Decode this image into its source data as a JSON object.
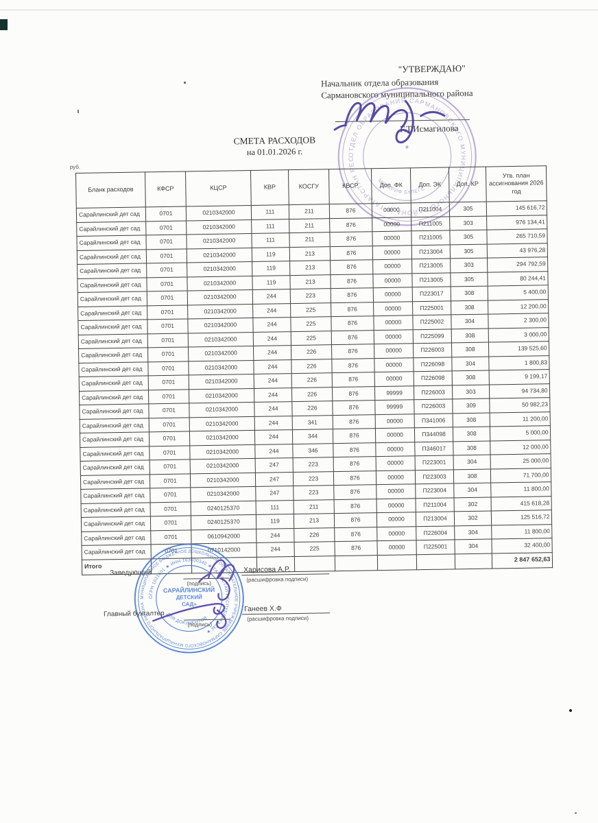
{
  "page": {
    "approval": {
      "approve_word": "\"УТВЕРЖДАЮ\"",
      "approver_title_line1": "Начальник отдела образования",
      "approver_title_line2": "Сармановского муниципального района",
      "approver_name": "Г.Т.Исмагилова"
    },
    "title": "СМЕТА РАСХОДОВ",
    "subtitle": "на 01.01.2026 г.",
    "unit_note": "руб."
  },
  "table": {
    "headers": [
      "Бланк расходов",
      "КФСР",
      "КЦСР",
      "КВР",
      "КОСГУ",
      "КВСР",
      "Доп. ФК",
      "Доп. ЭК",
      "Доп. КР",
      "Утв. план ассигнования 2026 год"
    ],
    "rows": [
      [
        "Сарайлинский дет сад",
        "0701",
        "0210342000",
        "111",
        "211",
        "876",
        "00000",
        "П211004",
        "305",
        "145 616,72"
      ],
      [
        "Сарайлинский дет сад",
        "0701",
        "0210342000",
        "111",
        "211",
        "876",
        "00000",
        "П211005",
        "303",
        "976 134,41"
      ],
      [
        "Сарайлинский дет сад",
        "0701",
        "0210342000",
        "111",
        "211",
        "876",
        "00000",
        "П211005",
        "305",
        "265 710,59"
      ],
      [
        "Сарайлинский дет сад",
        "0701",
        "0210342000",
        "119",
        "213",
        "876",
        "00000",
        "П213004",
        "305",
        "43 976,28"
      ],
      [
        "Сарайлинский дет сад",
        "0701",
        "0210342000",
        "119",
        "213",
        "876",
        "00000",
        "П213005",
        "303",
        "294 792,59"
      ],
      [
        "Сарайлинский дет сад",
        "0701",
        "0210342000",
        "119",
        "213",
        "876",
        "00000",
        "П213005",
        "305",
        "80 244,41"
      ],
      [
        "Сарайлинский дет сад",
        "0701",
        "0210342000",
        "244",
        "223",
        "876",
        "00000",
        "П223017",
        "308",
        "5 400,00"
      ],
      [
        "Сарайлинский дет сад",
        "0701",
        "0210342000",
        "244",
        "225",
        "876",
        "00000",
        "П225001",
        "308",
        "12 200,00"
      ],
      [
        "Сарайлинский дет сад",
        "0701",
        "0210342000",
        "244",
        "225",
        "876",
        "00000",
        "П225002",
        "304",
        "2 300,00"
      ],
      [
        "Сарайлинский дет сад",
        "0701",
        "0210342000",
        "244",
        "225",
        "876",
        "00000",
        "П225099",
        "308",
        "3 000,00"
      ],
      [
        "Сарайлинский дет сад",
        "0701",
        "0210342000",
        "244",
        "226",
        "876",
        "00000",
        "П226003",
        "308",
        "139 525,60"
      ],
      [
        "Сарайлинский дет сад",
        "0701",
        "0210342000",
        "244",
        "226",
        "876",
        "00000",
        "П226098",
        "304",
        "1 800,83"
      ],
      [
        "Сарайлинский дет сад",
        "0701",
        "0210342000",
        "244",
        "226",
        "876",
        "00000",
        "П226098",
        "308",
        "9 199,17"
      ],
      [
        "Сарайлинский дет сад",
        "0701",
        "0210342000",
        "244",
        "226",
        "876",
        "99999",
        "П226003",
        "303",
        "94 734,80"
      ],
      [
        "Сарайлинский дет сад",
        "0701",
        "0210342000",
        "244",
        "226",
        "876",
        "99999",
        "П226003",
        "309",
        "50 982,23"
      ],
      [
        "Сарайлинский дет сад",
        "0701",
        "0210342000",
        "244",
        "341",
        "876",
        "00000",
        "П341006",
        "308",
        "11 200,00"
      ],
      [
        "Сарайлинский дет сад",
        "0701",
        "0210342000",
        "244",
        "344",
        "876",
        "00000",
        "П344098",
        "308",
        "5 000,00"
      ],
      [
        "Сарайлинский дет сад",
        "0701",
        "0210342000",
        "244",
        "346",
        "876",
        "00000",
        "П346017",
        "308",
        "12 000,00"
      ],
      [
        "Сарайлинский дет сад",
        "0701",
        "0210342000",
        "247",
        "223",
        "876",
        "00000",
        "П223001",
        "304",
        "25 000,00"
      ],
      [
        "Сарайлинский дет сад",
        "0701",
        "0210342000",
        "247",
        "223",
        "876",
        "00000",
        "П223003",
        "308",
        "71 700,00"
      ],
      [
        "Сарайлинский дет сад",
        "0701",
        "0210342000",
        "247",
        "223",
        "876",
        "00000",
        "П223004",
        "304",
        "11 800,00"
      ],
      [
        "Сарайлинский дет сад",
        "0701",
        "0240125370",
        "111",
        "211",
        "876",
        "00000",
        "П211004",
        "302",
        "415 618,28"
      ],
      [
        "Сарайлинский дет сад",
        "0701",
        "0240125370",
        "119",
        "213",
        "876",
        "00000",
        "П213004",
        "302",
        "125 516,72"
      ],
      [
        "Сарайлинский дет сад",
        "0701",
        "0610942000",
        "244",
        "226",
        "876",
        "00000",
        "П226004",
        "304",
        "11 800,00"
      ],
      [
        "Сарайлинский дет сад",
        "0701",
        "0710142000",
        "244",
        "225",
        "876",
        "00000",
        "П225001",
        "304",
        "32 400,00"
      ]
    ],
    "total_label": "Итого",
    "total_amount": "2 847 652,63"
  },
  "signatures": {
    "row1": {
      "role": "Заведующий",
      "sig_caption": "(подпись)",
      "name": "Харисова А.Р.",
      "name_caption": "(расшифровка подписи)"
    },
    "row2": {
      "role": "Главный бухгалтер",
      "sig_caption": "(подпись)",
      "name": "Ганеев Х.Ф",
      "name_caption": "(расшифровка подписи)"
    }
  },
  "stamps": {
    "top": {
      "ring_text": "ОТДЕЛ ОБРАЗОВАНИЯ САРМАНОВСКОГО МУНИЦИПАЛЬНОГО РАЙОНА  ★  ТАТАРСТАН РЕСПУБЛИКАСЫ  ★ ",
      "center_text": "МӘГАРИФ БҮЛЕГЕ",
      "color": "#7b68b5"
    },
    "bottom": {
      "ring_text_outer": "МУНИЦИПАЛЬНОЕ БЮДЖЕТНОЕ ДОШКОЛЬНОЕ ОБРАЗОВАТЕЛЬНОЕ УЧРЕЖДЕНИЕ САРМАНОВСКОГО МУНИЦИПАЛЬНОГО РАЙОНА ",
      "ring_text_inner": "ОГРН 1021601  ★  ИНН 163600340  ★  ТАТАРСТАН РЕСПУБЛИКАСЫ  ★ ",
      "center_line1": "САРАЙЛИНСКИЙ",
      "center_line2": "ДЕТСКИЙ",
      "center_line3": "САД»",
      "purpose": "ДЛЯ ДОКУМЕНТОВ",
      "color": "#3f74cf"
    }
  }
}
